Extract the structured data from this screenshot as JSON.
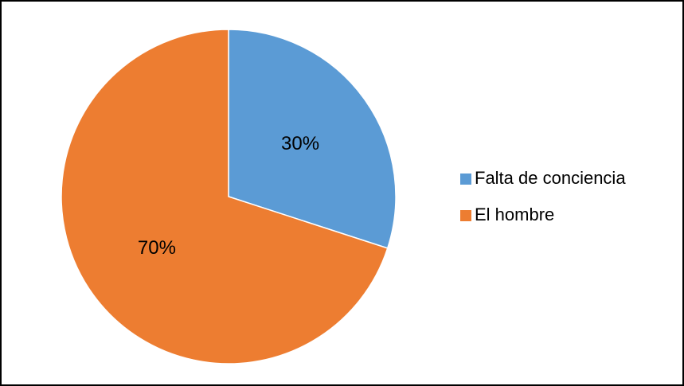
{
  "chart_data": {
    "type": "pie",
    "categories": [
      "Falta de conciencia",
      "El hombre"
    ],
    "values": [
      30,
      70
    ],
    "value_labels": [
      "30%",
      "70%"
    ],
    "colors": [
      "#5b9bd5",
      "#ed7d31"
    ],
    "legend": "right"
  }
}
